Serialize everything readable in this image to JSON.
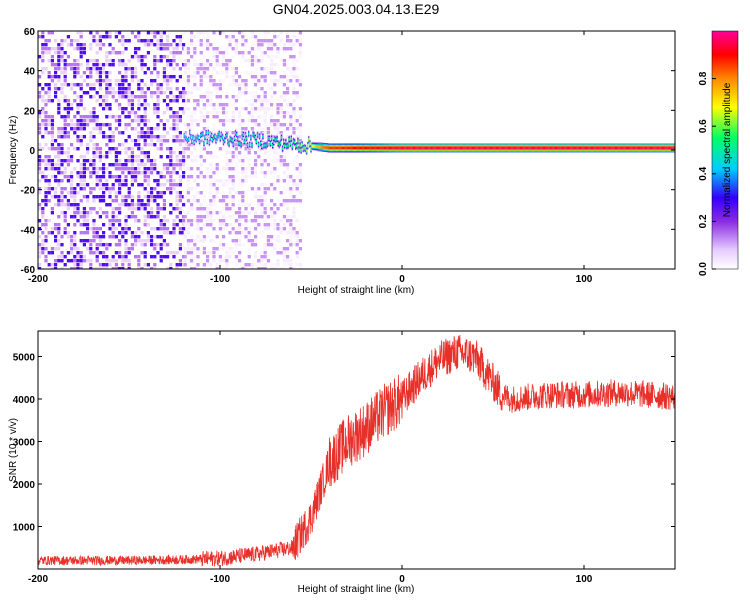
{
  "figure": {
    "title": "GN04.2025.003.04.13.E29"
  },
  "colors": {
    "series": "#e8302a",
    "axis": "#000000",
    "background": "#ffffff"
  },
  "chart_data": [
    {
      "type": "heatmap",
      "xlabel": "Height of straight line (km)",
      "ylabel": "Frequency (Hz)",
      "xlim": [
        -200,
        150
      ],
      "ylim": [
        -60,
        60
      ],
      "x_ticks": [
        -200,
        -100,
        0,
        100
      ],
      "y_ticks": [
        -60,
        -40,
        -20,
        0,
        20,
        40,
        60
      ],
      "grid": false,
      "colorbar": {
        "label": "Normalized spectral amplitude",
        "range": [
          0,
          1
        ],
        "ticks": [
          0.0,
          0.2,
          0.4,
          0.6,
          0.8
        ],
        "colormap": [
          "#ffffff",
          "#e6ccff",
          "#8a2be2",
          "#3300ff",
          "#00ccff",
          "#00ff66",
          "#ffff00",
          "#ff8800",
          "#ff0000",
          "#ff0099"
        ]
      },
      "regions": [
        {
          "x_range": [
            -200,
            -120
          ],
          "description_level": 0.25
        },
        {
          "x_range": [
            -120,
            -55
          ],
          "description_level": 0.1
        }
      ],
      "ridge": [
        {
          "x": -120,
          "freq": 6,
          "amp": 0.45
        },
        {
          "x": -100,
          "freq": 6,
          "amp": 0.5
        },
        {
          "x": -80,
          "freq": 5,
          "amp": 0.5
        },
        {
          "x": -60,
          "freq": 3,
          "amp": 0.55
        },
        {
          "x": -50,
          "freq": 2,
          "amp": 0.65
        },
        {
          "x": -40,
          "freq": 1,
          "amp": 0.85
        },
        {
          "x": -20,
          "freq": 1,
          "amp": 0.9
        },
        {
          "x": 0,
          "freq": 1,
          "amp": 0.95
        },
        {
          "x": 50,
          "freq": 1,
          "amp": 0.95
        },
        {
          "x": 100,
          "freq": 1,
          "amp": 0.95
        },
        {
          "x": 150,
          "freq": 1,
          "amp": 0.95
        }
      ]
    },
    {
      "type": "line",
      "xlabel": "Height of straight line (km)",
      "ylabel": "SNR (10 * v/v)",
      "xlim": [
        -200,
        150
      ],
      "ylim": [
        0,
        5600
      ],
      "x_ticks": [
        -200,
        -100,
        0,
        100
      ],
      "y_ticks": [
        1000,
        2000,
        3000,
        4000,
        5000
      ],
      "grid": false,
      "series": [
        {
          "x": [
            -200,
            -150,
            -120,
            -100,
            -80,
            -60,
            -50,
            -40,
            -30,
            -20,
            -10,
            0,
            10,
            20,
            30,
            40,
            50,
            55,
            60,
            80,
            100,
            120,
            150
          ],
          "values": [
            200,
            200,
            220,
            250,
            350,
            500,
            1200,
            2500,
            3000,
            3300,
            3700,
            4000,
            4500,
            4900,
            5100,
            5000,
            4400,
            4100,
            4000,
            4100,
            4100,
            4150,
            4050
          ]
        }
      ]
    }
  ]
}
